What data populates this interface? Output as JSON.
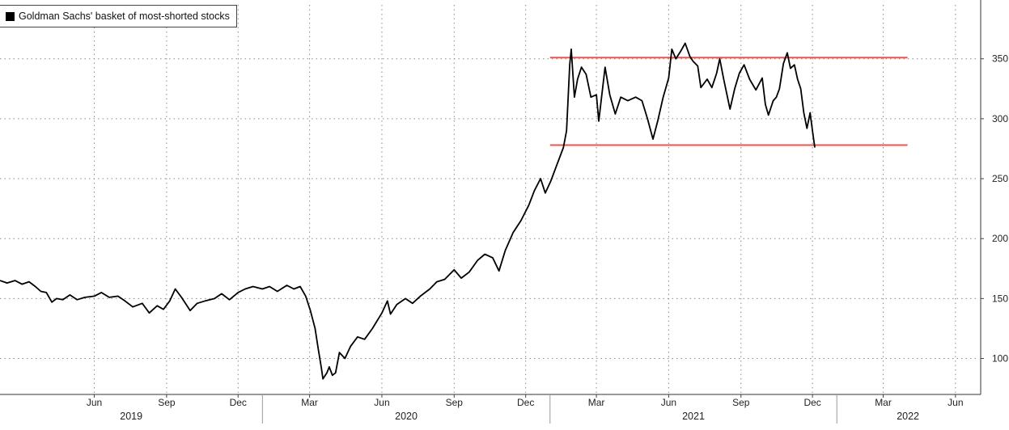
{
  "chart_data": {
    "type": "line",
    "title": "",
    "xlabel": "",
    "ylabel": "",
    "y_ticks": [
      100,
      150,
      200,
      250,
      300,
      350
    ],
    "ylim": [
      70,
      395
    ],
    "xlim": [
      "2019-02-01",
      "2022-07-01"
    ],
    "x_tick_labels": [
      {
        "label": "Jun",
        "date": "2019-06-01"
      },
      {
        "label": "Sep",
        "date": "2019-09-01"
      },
      {
        "label": "Dec",
        "date": "2019-12-01"
      },
      {
        "label": "Mar",
        "date": "2020-03-01"
      },
      {
        "label": "Jun",
        "date": "2020-06-01"
      },
      {
        "label": "Sep",
        "date": "2020-09-01"
      },
      {
        "label": "Dec",
        "date": "2020-12-01"
      },
      {
        "label": "Mar",
        "date": "2021-03-01"
      },
      {
        "label": "Jun",
        "date": "2021-06-01"
      },
      {
        "label": "Sep",
        "date": "2021-09-01"
      },
      {
        "label": "Dec",
        "date": "2021-12-01"
      },
      {
        "label": "Mar",
        "date": "2022-03-01"
      },
      {
        "label": "Jun",
        "date": "2022-06-01"
      }
    ],
    "year_labels": [
      "2019",
      "2020",
      "2021",
      "2022"
    ],
    "legend": {
      "position": "top-left",
      "entries": [
        "Goldman Sachs' basket of most-shorted stocks"
      ]
    },
    "grid": true,
    "horizontal_reference_lines": [
      {
        "value": 351,
        "from": "2021-01-01",
        "to": "2022-04-01",
        "color": "#ef5350"
      },
      {
        "value": 278,
        "from": "2021-01-01",
        "to": "2022-04-01",
        "color": "#ef5350"
      }
    ],
    "series": [
      {
        "name": "Goldman Sachs' basket of most-shorted stocks",
        "color": "#000000",
        "points": [
          [
            "2019-02-01",
            165
          ],
          [
            "2019-02-10",
            163
          ],
          [
            "2019-02-20",
            165
          ],
          [
            "2019-03-01",
            162
          ],
          [
            "2019-03-10",
            164
          ],
          [
            "2019-03-18",
            160
          ],
          [
            "2019-03-25",
            156
          ],
          [
            "2019-04-01",
            155
          ],
          [
            "2019-04-08",
            147
          ],
          [
            "2019-04-14",
            150
          ],
          [
            "2019-04-22",
            149
          ],
          [
            "2019-05-01",
            153
          ],
          [
            "2019-05-10",
            149
          ],
          [
            "2019-05-20",
            151
          ],
          [
            "2019-06-01",
            152
          ],
          [
            "2019-06-10",
            155
          ],
          [
            "2019-06-20",
            151
          ],
          [
            "2019-07-01",
            152
          ],
          [
            "2019-07-10",
            148
          ],
          [
            "2019-07-20",
            143
          ],
          [
            "2019-08-01",
            146
          ],
          [
            "2019-08-10",
            138
          ],
          [
            "2019-08-20",
            144
          ],
          [
            "2019-08-28",
            141
          ],
          [
            "2019-09-05",
            148
          ],
          [
            "2019-09-12",
            158
          ],
          [
            "2019-09-20",
            151
          ],
          [
            "2019-10-01",
            140
          ],
          [
            "2019-10-10",
            146
          ],
          [
            "2019-10-20",
            148
          ],
          [
            "2019-11-01",
            150
          ],
          [
            "2019-11-10",
            154
          ],
          [
            "2019-11-20",
            149
          ],
          [
            "2019-12-01",
            155
          ],
          [
            "2019-12-10",
            158
          ],
          [
            "2019-12-20",
            160
          ],
          [
            "2020-01-01",
            158
          ],
          [
            "2020-01-10",
            160
          ],
          [
            "2020-01-20",
            156
          ],
          [
            "2020-02-01",
            161
          ],
          [
            "2020-02-10",
            158
          ],
          [
            "2020-02-18",
            160
          ],
          [
            "2020-02-25",
            152
          ],
          [
            "2020-03-02",
            140
          ],
          [
            "2020-03-08",
            125
          ],
          [
            "2020-03-12",
            108
          ],
          [
            "2020-03-16",
            92
          ],
          [
            "2020-03-18",
            83
          ],
          [
            "2020-03-23",
            88
          ],
          [
            "2020-03-26",
            93
          ],
          [
            "2020-03-30",
            86
          ],
          [
            "2020-04-03",
            88
          ],
          [
            "2020-04-08",
            105
          ],
          [
            "2020-04-15",
            100
          ],
          [
            "2020-04-22",
            110
          ],
          [
            "2020-05-01",
            118
          ],
          [
            "2020-05-10",
            116
          ],
          [
            "2020-05-20",
            125
          ],
          [
            "2020-06-01",
            138
          ],
          [
            "2020-06-08",
            148
          ],
          [
            "2020-06-12",
            137
          ],
          [
            "2020-06-20",
            145
          ],
          [
            "2020-07-01",
            150
          ],
          [
            "2020-07-10",
            146
          ],
          [
            "2020-07-20",
            152
          ],
          [
            "2020-08-01",
            158
          ],
          [
            "2020-08-10",
            164
          ],
          [
            "2020-08-20",
            166
          ],
          [
            "2020-09-01",
            174
          ],
          [
            "2020-09-10",
            167
          ],
          [
            "2020-09-20",
            172
          ],
          [
            "2020-10-01",
            182
          ],
          [
            "2020-10-10",
            187
          ],
          [
            "2020-10-20",
            184
          ],
          [
            "2020-10-28",
            173
          ],
          [
            "2020-11-05",
            190
          ],
          [
            "2020-11-15",
            205
          ],
          [
            "2020-11-25",
            215
          ],
          [
            "2020-12-05",
            228
          ],
          [
            "2020-12-12",
            240
          ],
          [
            "2020-12-20",
            250
          ],
          [
            "2020-12-26",
            238
          ],
          [
            "2021-01-02",
            248
          ],
          [
            "2021-01-10",
            262
          ],
          [
            "2021-01-18",
            276
          ],
          [
            "2021-01-22",
            290
          ],
          [
            "2021-01-26",
            345
          ],
          [
            "2021-01-28",
            358
          ],
          [
            "2021-02-01",
            318
          ],
          [
            "2021-02-05",
            333
          ],
          [
            "2021-02-10",
            343
          ],
          [
            "2021-02-16",
            337
          ],
          [
            "2021-02-22",
            318
          ],
          [
            "2021-03-01",
            320
          ],
          [
            "2021-03-04",
            298
          ],
          [
            "2021-03-12",
            343
          ],
          [
            "2021-03-18",
            320
          ],
          [
            "2021-03-25",
            304
          ],
          [
            "2021-04-01",
            318
          ],
          [
            "2021-04-10",
            315
          ],
          [
            "2021-04-20",
            318
          ],
          [
            "2021-04-28",
            315
          ],
          [
            "2021-05-05",
            300
          ],
          [
            "2021-05-12",
            283
          ],
          [
            "2021-05-18",
            298
          ],
          [
            "2021-05-25",
            318
          ],
          [
            "2021-06-01",
            334
          ],
          [
            "2021-06-05",
            358
          ],
          [
            "2021-06-10",
            350
          ],
          [
            "2021-06-16",
            356
          ],
          [
            "2021-06-22",
            363
          ],
          [
            "2021-06-28",
            352
          ],
          [
            "2021-07-02",
            348
          ],
          [
            "2021-07-08",
            344
          ],
          [
            "2021-07-12",
            326
          ],
          [
            "2021-07-20",
            333
          ],
          [
            "2021-07-26",
            326
          ],
          [
            "2021-08-01",
            338
          ],
          [
            "2021-08-05",
            350
          ],
          [
            "2021-08-10",
            333
          ],
          [
            "2021-08-18",
            308
          ],
          [
            "2021-08-24",
            325
          ],
          [
            "2021-08-30",
            338
          ],
          [
            "2021-09-05",
            345
          ],
          [
            "2021-09-12",
            333
          ],
          [
            "2021-09-20",
            324
          ],
          [
            "2021-09-28",
            334
          ],
          [
            "2021-10-02",
            312
          ],
          [
            "2021-10-06",
            303
          ],
          [
            "2021-10-12",
            315
          ],
          [
            "2021-10-16",
            318
          ],
          [
            "2021-10-20",
            325
          ],
          [
            "2021-10-25",
            346
          ],
          [
            "2021-10-30",
            355
          ],
          [
            "2021-11-03",
            342
          ],
          [
            "2021-11-08",
            345
          ],
          [
            "2021-11-12",
            333
          ],
          [
            "2021-11-16",
            325
          ],
          [
            "2021-11-20",
            305
          ],
          [
            "2021-11-24",
            292
          ],
          [
            "2021-11-28",
            305
          ],
          [
            "2021-12-01",
            290
          ],
          [
            "2021-12-04",
            276
          ]
        ]
      }
    ]
  }
}
